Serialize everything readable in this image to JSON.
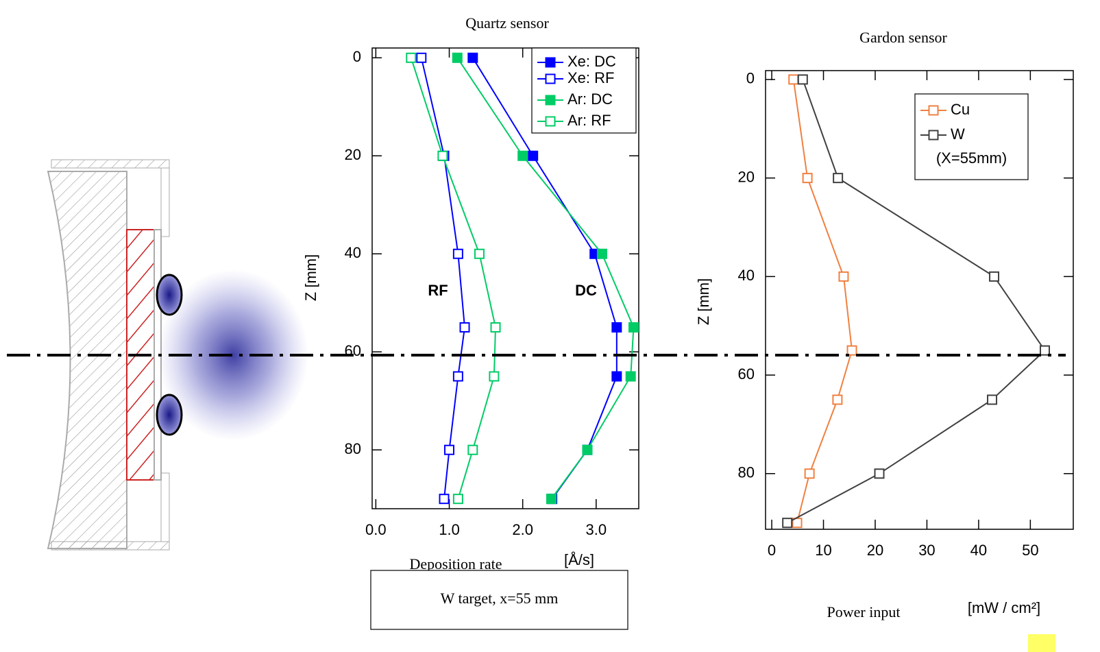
{
  "chart_data": [
    {
      "type": "line",
      "title": "Quartz sensor",
      "xlabel": "Deposition rate",
      "xunit": "[Å/s]",
      "ylabel": "Z [mm]",
      "y": [
        0,
        20,
        40,
        55,
        65,
        80,
        90
      ],
      "series": [
        {
          "name": "Xe: DC",
          "color": "#0000ff",
          "filled": true,
          "values": [
            1.32,
            2.14,
            2.98,
            3.28,
            3.28,
            2.88,
            2.4
          ]
        },
        {
          "name": "Xe: RF",
          "color": "#0000ff",
          "filled": false,
          "values": [
            0.62,
            0.93,
            1.12,
            1.21,
            1.12,
            1.0,
            0.93
          ]
        },
        {
          "name": "Ar: DC",
          "color": "#00cc66",
          "filled": true,
          "values": [
            1.11,
            2.0,
            3.08,
            3.51,
            3.47,
            2.88,
            2.39
          ]
        },
        {
          "name": "Ar: RF",
          "color": "#00cc66",
          "filled": false,
          "values": [
            0.48,
            0.91,
            1.41,
            1.63,
            1.61,
            1.32,
            1.12
          ]
        }
      ],
      "xlim": [
        -0.05,
        3.58
      ],
      "xticks": [
        {
          "value": 0,
          "label": "0.0"
        },
        {
          "value": 1,
          "label": "1.0"
        },
        {
          "value": 2,
          "label": "2.0"
        },
        {
          "value": 3,
          "label": "3.0"
        }
      ],
      "ylim": [
        -2,
        92
      ],
      "yticks": [
        0,
        20,
        40,
        60,
        80
      ],
      "y_inverted": true,
      "legend": "upper right",
      "annotations": [
        "RF",
        "DC"
      ],
      "caption": "W target, x=55 mm"
    },
    {
      "type": "line",
      "title": "Gardon sensor",
      "xlabel": "Power input",
      "xunit": "[mW / cm²]",
      "ylabel": "Z [mm]",
      "y": [
        0,
        20,
        40,
        55,
        65,
        80,
        90
      ],
      "series": [
        {
          "name": "Cu",
          "color": "#f08040",
          "filled": false,
          "values": [
            4.2,
            6.9,
            13.9,
            15.5,
            12.7,
            7.3,
            4.9
          ]
        },
        {
          "name": "W",
          "color": "#404040",
          "filled": false,
          "values": [
            6.0,
            12.8,
            43.0,
            52.8,
            42.6,
            20.8,
            3.0
          ]
        }
      ],
      "xlim": [
        -1.2,
        58.3
      ],
      "xticks": [
        0,
        10,
        20,
        30,
        40,
        50
      ],
      "ylim": [
        -1.8,
        91.3
      ],
      "yticks": [
        0,
        20,
        40,
        60,
        80
      ],
      "y_inverted": true,
      "legend": "upper right",
      "legend_note": "(X=55mm)"
    }
  ]
}
